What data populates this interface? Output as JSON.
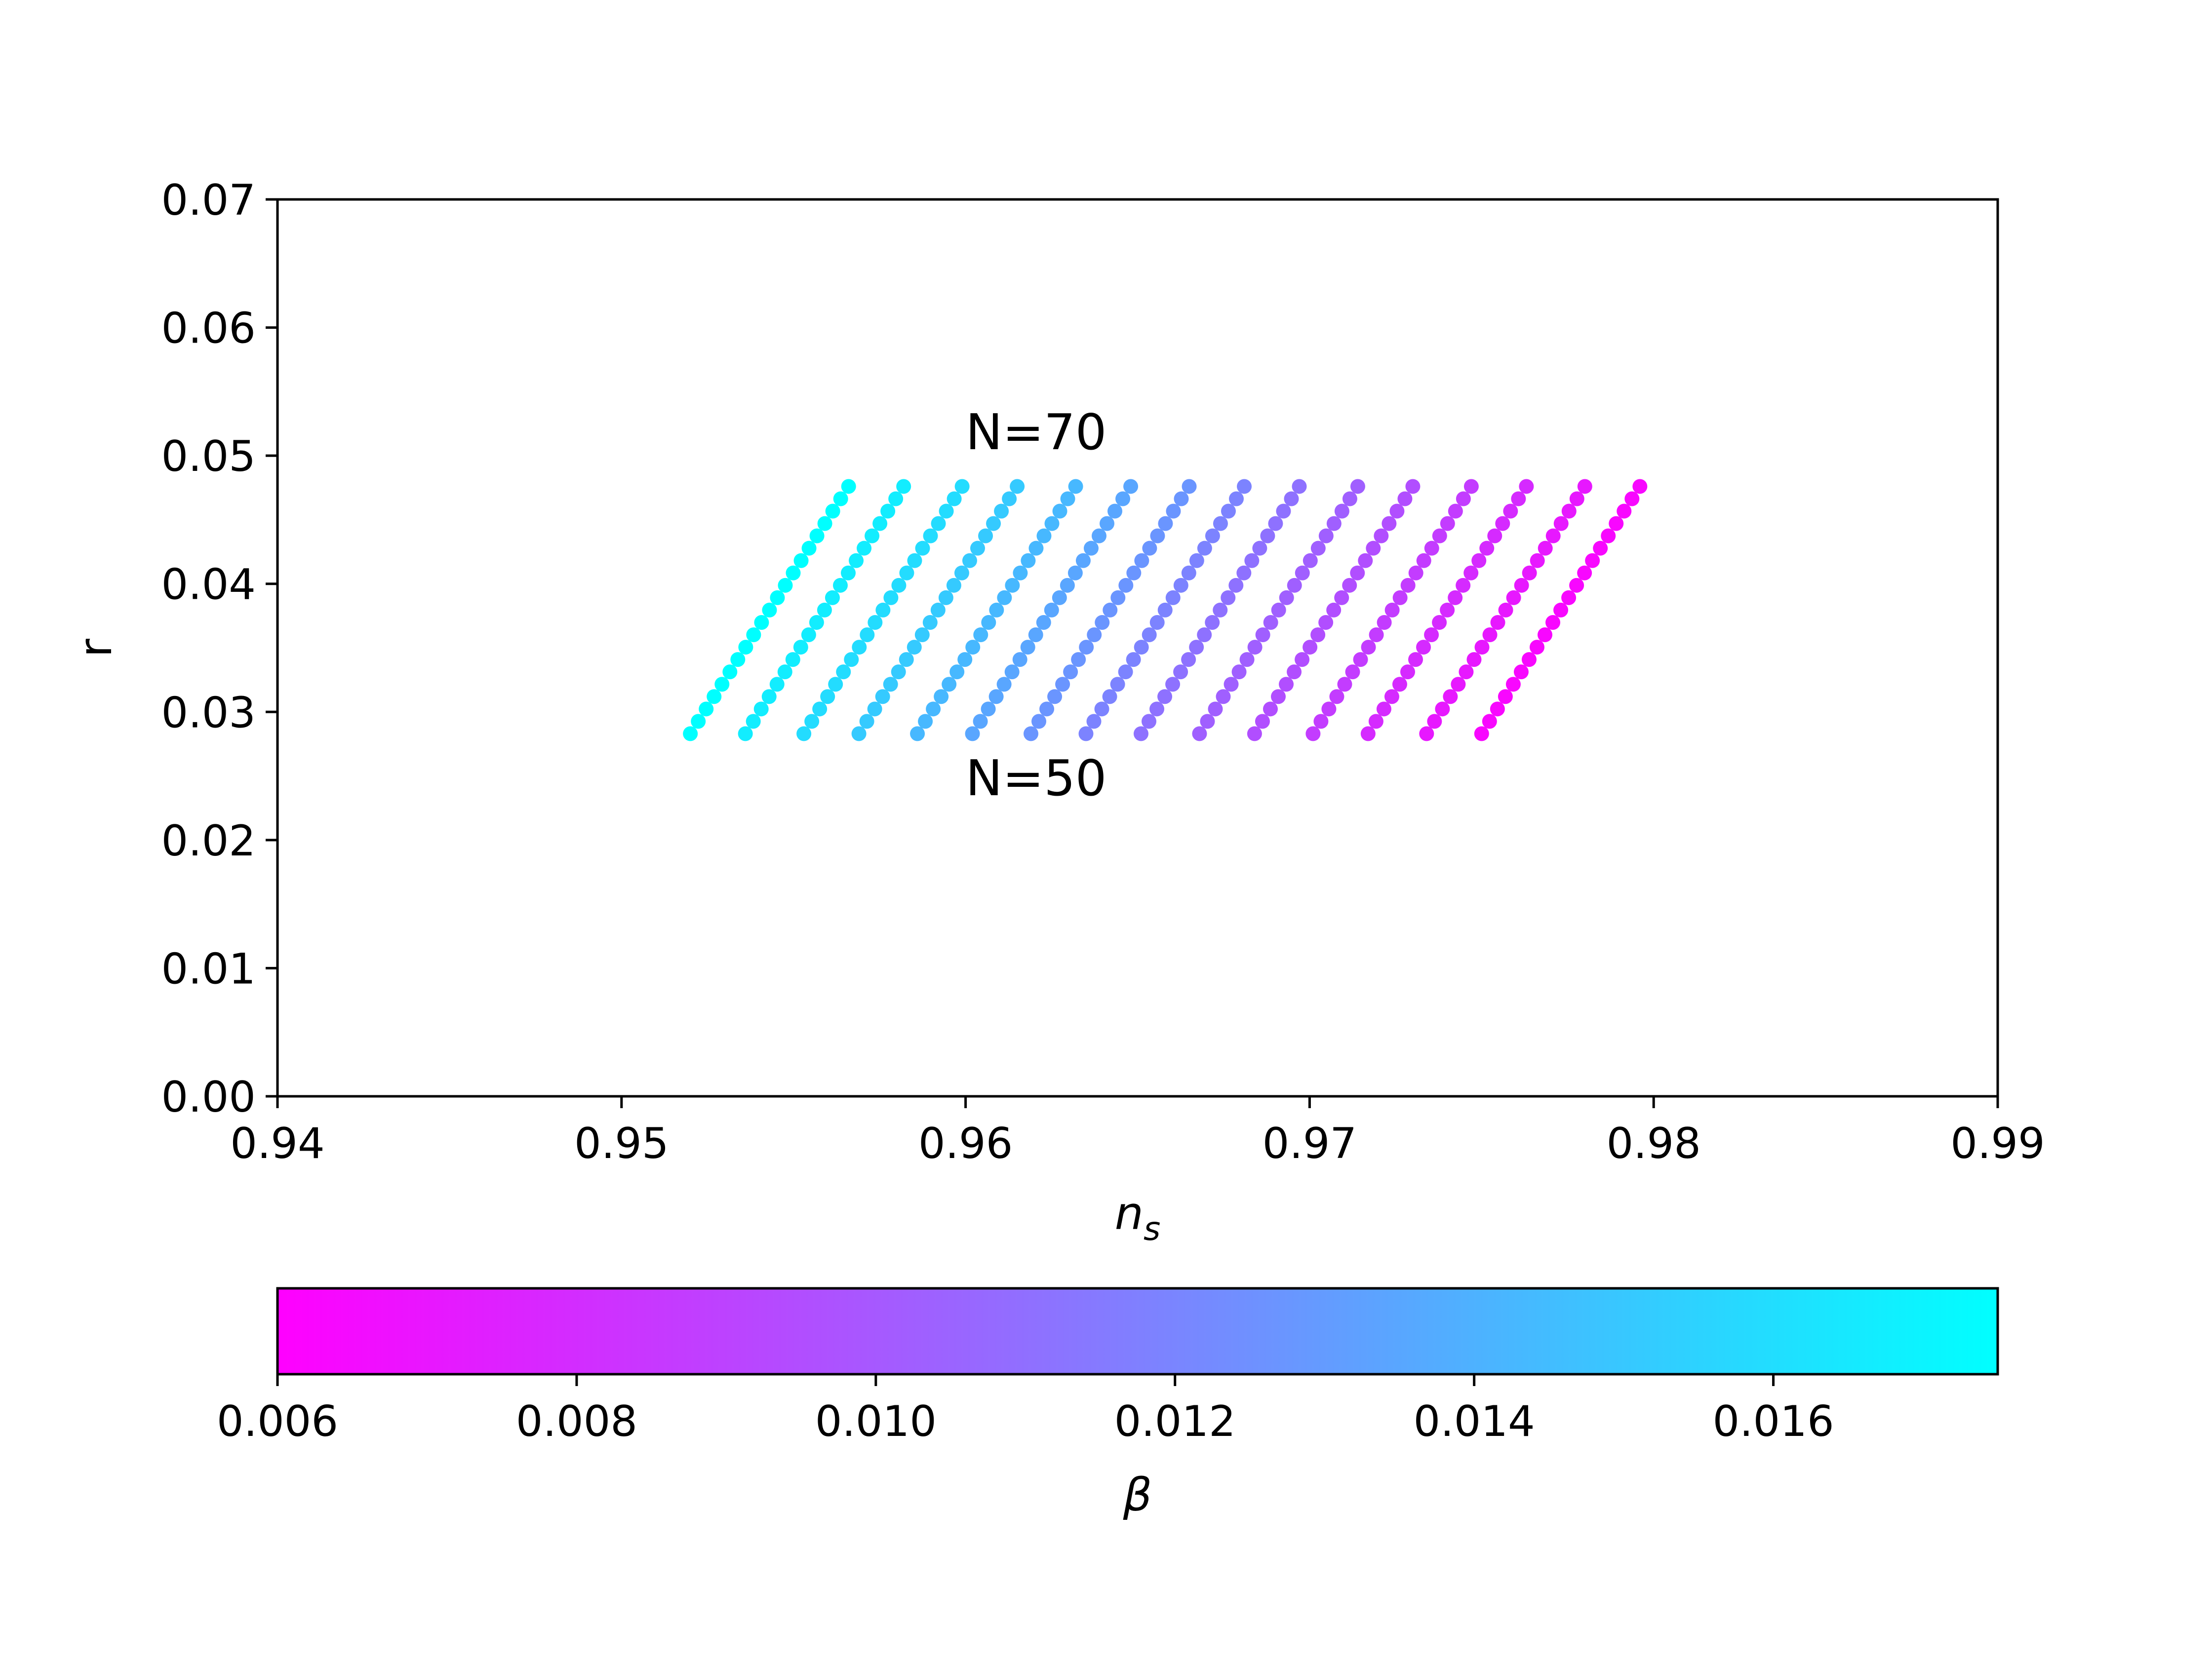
{
  "chart_data": {
    "type": "scatter",
    "title": "",
    "xlabel": "n",
    "xlabel_subscript": "s",
    "ylabel": "r",
    "xlim": [
      0.94,
      0.99
    ],
    "ylim": [
      0.0,
      0.07
    ],
    "xticks": [
      "0.94",
      "0.95",
      "0.96",
      "0.97",
      "0.98",
      "0.99"
    ],
    "yticks": [
      "0.00",
      "0.01",
      "0.02",
      "0.03",
      "0.04",
      "0.05",
      "0.06",
      "0.07"
    ],
    "grid": false,
    "annotations": [
      {
        "text": "N=70",
        "x": 0.96,
        "y": 0.0505
      },
      {
        "text": "N=50",
        "x": 0.96,
        "y": 0.0235
      }
    ],
    "colorbar": {
      "label": "β",
      "orientation": "horizontal",
      "range": [
        0.006,
        0.0175
      ],
      "colormap": "cool_reversed",
      "color_low": "#ff00ff",
      "color_high": "#00ffff",
      "ticks": [
        "0.006",
        "0.008",
        "0.010",
        "0.012",
        "0.014",
        "0.016"
      ]
    },
    "N_range": [
      50,
      70
    ],
    "r_range": [
      0.0283,
      0.0476
    ],
    "series": [
      {
        "beta": 0.0175,
        "ns_N50": 0.952,
        "ns_N70": 0.9566
      },
      {
        "beta": 0.0167,
        "ns_N50": 0.9536,
        "ns_N70": 0.9582
      },
      {
        "beta": 0.0159,
        "ns_N50": 0.9553,
        "ns_N70": 0.9599
      },
      {
        "beta": 0.0151,
        "ns_N50": 0.9569,
        "ns_N70": 0.9615
      },
      {
        "beta": 0.0143,
        "ns_N50": 0.9586,
        "ns_N70": 0.9632
      },
      {
        "beta": 0.0135,
        "ns_N50": 0.9602,
        "ns_N70": 0.9648
      },
      {
        "beta": 0.0127,
        "ns_N50": 0.9619,
        "ns_N70": 0.9665
      },
      {
        "beta": 0.0119,
        "ns_N50": 0.9635,
        "ns_N70": 0.9681
      },
      {
        "beta": 0.0111,
        "ns_N50": 0.9651,
        "ns_N70": 0.9697
      },
      {
        "beta": 0.0103,
        "ns_N50": 0.9668,
        "ns_N70": 0.9714
      },
      {
        "beta": 0.0095,
        "ns_N50": 0.9684,
        "ns_N70": 0.973
      },
      {
        "beta": 0.0087,
        "ns_N50": 0.9701,
        "ns_N70": 0.9747
      },
      {
        "beta": 0.0079,
        "ns_N50": 0.9717,
        "ns_N70": 0.9763
      },
      {
        "beta": 0.0071,
        "ns_N50": 0.9734,
        "ns_N70": 0.978
      },
      {
        "beta": 0.0063,
        "ns_N50": 0.975,
        "ns_N70": 0.9796
      }
    ]
  }
}
